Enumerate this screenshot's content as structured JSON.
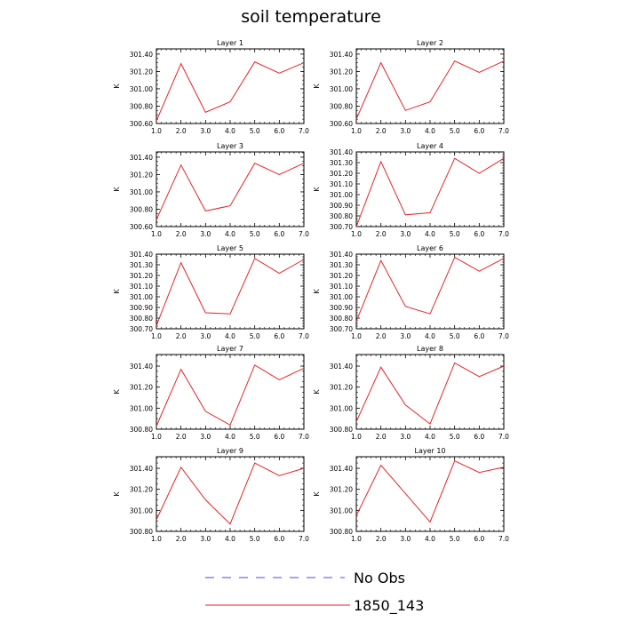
{
  "chart": {
    "title": "soil temperature"
  },
  "legend": {
    "items": [
      {
        "label": "No Obs",
        "color": "#4b4bd0",
        "dash": true
      },
      {
        "label": "1850_143",
        "color": "#e8232a",
        "dash": false
      }
    ]
  },
  "chart_data": [
    {
      "type": "line",
      "title": "Layer 1",
      "ylabel": "K",
      "x": [
        1.0,
        2.0,
        3.0,
        4.0,
        5.0,
        6.0,
        7.0
      ],
      "xticks": [
        "1.0",
        "2.0",
        "3.0",
        "4.0",
        "5.0",
        "6.0",
        "7.0"
      ],
      "ylim": [
        300.6,
        301.46
      ],
      "yticks": [
        "300.60",
        "300.80",
        "301.00",
        "301.20",
        "301.40"
      ],
      "series": [
        {
          "name": "1850_143",
          "color": "#e8232a",
          "values": [
            300.63,
            301.29,
            300.73,
            300.85,
            301.31,
            301.18,
            301.3
          ]
        }
      ]
    },
    {
      "type": "line",
      "title": "Layer 2",
      "ylabel": "K",
      "x": [
        1.0,
        2.0,
        3.0,
        4.0,
        5.0,
        6.0,
        7.0
      ],
      "xticks": [
        "1.0",
        "2.0",
        "3.0",
        "4.0",
        "5.0",
        "6.0",
        "7.0"
      ],
      "ylim": [
        300.6,
        301.46
      ],
      "yticks": [
        "300.60",
        "300.80",
        "301.00",
        "301.20",
        "301.40"
      ],
      "series": [
        {
          "name": "1850_143",
          "color": "#e8232a",
          "values": [
            300.65,
            301.3,
            300.75,
            300.85,
            301.32,
            301.19,
            301.32
          ]
        }
      ]
    },
    {
      "type": "line",
      "title": "Layer 3",
      "ylabel": "K",
      "x": [
        1.0,
        2.0,
        3.0,
        4.0,
        5.0,
        6.0,
        7.0
      ],
      "xticks": [
        "1.0",
        "2.0",
        "3.0",
        "4.0",
        "5.0",
        "6.0",
        "7.0"
      ],
      "ylim": [
        300.6,
        301.46
      ],
      "yticks": [
        "300.60",
        "300.80",
        "301.00",
        "301.20",
        "301.40"
      ],
      "series": [
        {
          "name": "1850_143",
          "color": "#e8232a",
          "values": [
            300.68,
            301.31,
            300.78,
            300.84,
            301.33,
            301.2,
            301.33
          ]
        }
      ]
    },
    {
      "type": "line",
      "title": "Layer 4",
      "ylabel": "K",
      "x": [
        1.0,
        2.0,
        3.0,
        4.0,
        5.0,
        6.0,
        7.0
      ],
      "xticks": [
        "1.0",
        "2.0",
        "3.0",
        "4.0",
        "5.0",
        "6.0",
        "7.0"
      ],
      "ylim": [
        300.7,
        301.4
      ],
      "yticks": [
        "300.70",
        "300.80",
        "300.90",
        "301.00",
        "301.10",
        "301.20",
        "301.30",
        "301.40"
      ],
      "series": [
        {
          "name": "1850_143",
          "color": "#e8232a",
          "values": [
            300.7,
            301.31,
            300.81,
            300.83,
            301.34,
            301.2,
            301.34
          ]
        }
      ]
    },
    {
      "type": "line",
      "title": "Layer 5",
      "ylabel": "K",
      "x": [
        1.0,
        2.0,
        3.0,
        4.0,
        5.0,
        6.0,
        7.0
      ],
      "xticks": [
        "1.0",
        "2.0",
        "3.0",
        "4.0",
        "5.0",
        "6.0",
        "7.0"
      ],
      "ylim": [
        300.7,
        301.4
      ],
      "yticks": [
        "300.70",
        "300.80",
        "300.90",
        "301.00",
        "301.10",
        "301.20",
        "301.30",
        "301.40"
      ],
      "series": [
        {
          "name": "1850_143",
          "color": "#e8232a",
          "values": [
            300.73,
            301.32,
            300.85,
            300.84,
            301.36,
            301.22,
            301.35
          ]
        }
      ]
    },
    {
      "type": "line",
      "title": "Layer 6",
      "ylabel": "K",
      "x": [
        1.0,
        2.0,
        3.0,
        4.0,
        5.0,
        6.0,
        7.0
      ],
      "xticks": [
        "1.0",
        "2.0",
        "3.0",
        "4.0",
        "5.0",
        "6.0",
        "7.0"
      ],
      "ylim": [
        300.7,
        301.4
      ],
      "yticks": [
        "300.70",
        "300.80",
        "300.90",
        "301.00",
        "301.10",
        "301.20",
        "301.30",
        "301.40"
      ],
      "series": [
        {
          "name": "1850_143",
          "color": "#e8232a",
          "values": [
            300.77,
            301.34,
            300.91,
            300.84,
            301.37,
            301.24,
            301.36
          ]
        }
      ]
    },
    {
      "type": "line",
      "title": "Layer 7",
      "ylabel": "K",
      "x": [
        1.0,
        2.0,
        3.0,
        4.0,
        5.0,
        6.0,
        7.0
      ],
      "xticks": [
        "1.0",
        "2.0",
        "3.0",
        "4.0",
        "5.0",
        "6.0",
        "7.0"
      ],
      "ylim": [
        300.8,
        301.51
      ],
      "yticks": [
        "300.80",
        "301.00",
        "301.20",
        "301.40"
      ],
      "series": [
        {
          "name": "1850_143",
          "color": "#e8232a",
          "values": [
            300.83,
            301.37,
            300.97,
            300.84,
            301.41,
            301.27,
            301.38
          ]
        }
      ]
    },
    {
      "type": "line",
      "title": "Layer 8",
      "ylabel": "K",
      "x": [
        1.0,
        2.0,
        3.0,
        4.0,
        5.0,
        6.0,
        7.0
      ],
      "xticks": [
        "1.0",
        "2.0",
        "3.0",
        "4.0",
        "5.0",
        "6.0",
        "7.0"
      ],
      "ylim": [
        300.8,
        301.51
      ],
      "yticks": [
        "300.80",
        "301.00",
        "301.20",
        "301.40"
      ],
      "series": [
        {
          "name": "1850_143",
          "color": "#e8232a",
          "values": [
            300.87,
            301.39,
            301.03,
            300.85,
            301.43,
            301.3,
            301.4
          ]
        }
      ]
    },
    {
      "type": "line",
      "title": "Layer 9",
      "ylabel": "K",
      "x": [
        1.0,
        2.0,
        3.0,
        4.0,
        5.0,
        6.0,
        7.0
      ],
      "xticks": [
        "1.0",
        "2.0",
        "3.0",
        "4.0",
        "5.0",
        "6.0",
        "7.0"
      ],
      "ylim": [
        300.8,
        301.51
      ],
      "yticks": [
        "300.80",
        "301.00",
        "301.20",
        "301.40"
      ],
      "series": [
        {
          "name": "1850_143",
          "color": "#e8232a",
          "values": [
            300.91,
            301.41,
            301.1,
            300.87,
            301.45,
            301.33,
            301.4
          ]
        }
      ]
    },
    {
      "type": "line",
      "title": "Layer 10",
      "ylabel": "K",
      "x": [
        1.0,
        2.0,
        3.0,
        4.0,
        5.0,
        6.0,
        7.0
      ],
      "xticks": [
        "1.0",
        "2.0",
        "3.0",
        "4.0",
        "5.0",
        "6.0",
        "7.0"
      ],
      "ylim": [
        300.8,
        301.51
      ],
      "yticks": [
        "300.80",
        "301.00",
        "301.20",
        "301.40"
      ],
      "series": [
        {
          "name": "1850_143",
          "color": "#e8232a",
          "values": [
            300.95,
            301.43,
            301.16,
            300.89,
            301.47,
            301.36,
            301.41
          ]
        }
      ]
    }
  ]
}
